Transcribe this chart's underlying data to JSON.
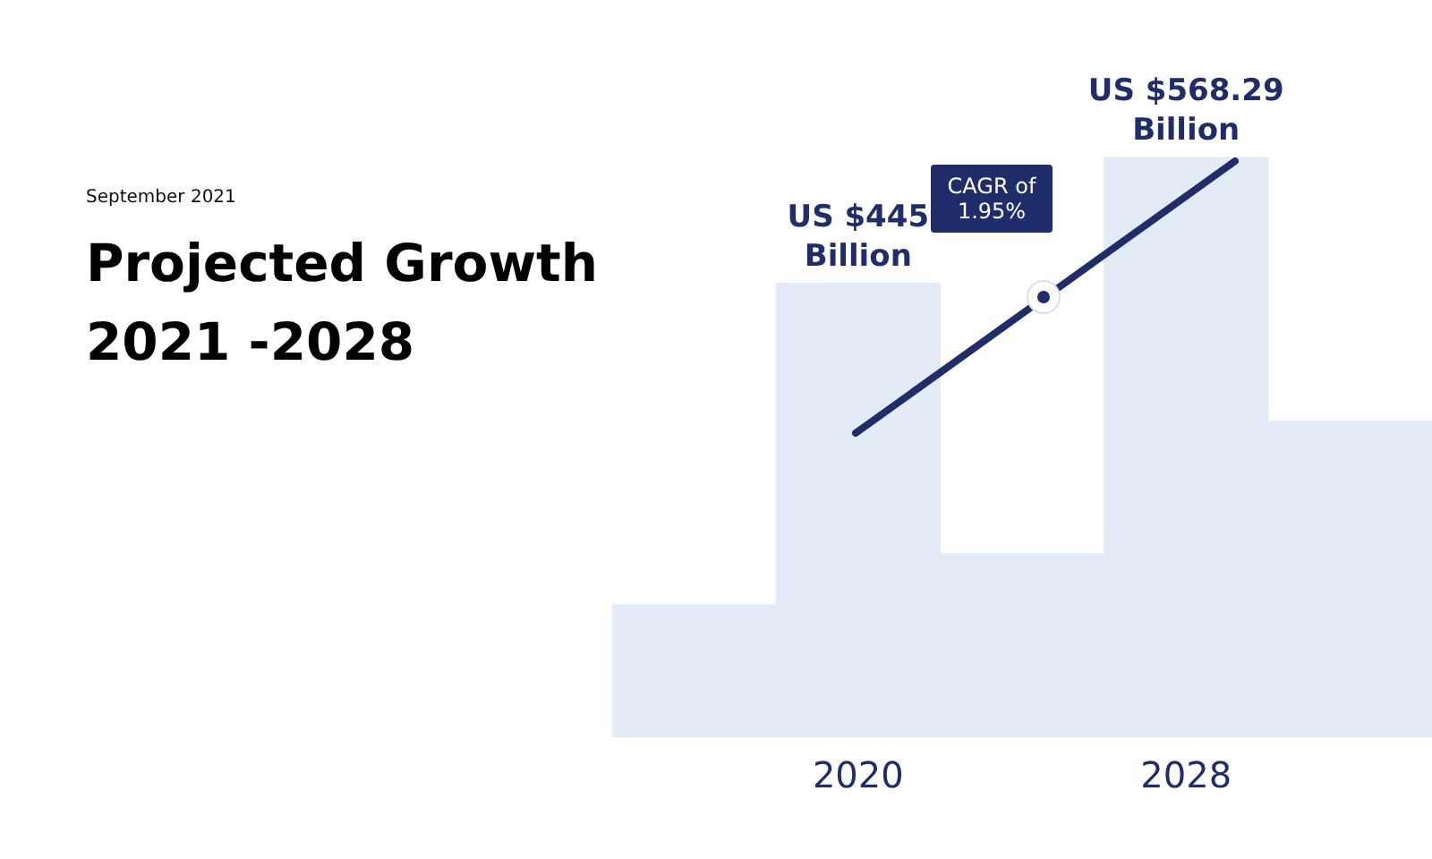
{
  "chart_data": {
    "type": "bar",
    "title": "Projected Growth 2021 -2028",
    "subtitle": "September 2021",
    "categories": [
      null,
      "2020",
      null,
      "2028",
      null
    ],
    "values": [
      130,
      445,
      180,
      568.29,
      310
    ],
    "value_labels": [
      null,
      "US $445 Billion",
      null,
      "US $568.29 Billion",
      null
    ],
    "color": "#e3ebf6",
    "grid": false,
    "legend": false,
    "annotations": [
      "CAGR of 1.95%"
    ]
  }
}
